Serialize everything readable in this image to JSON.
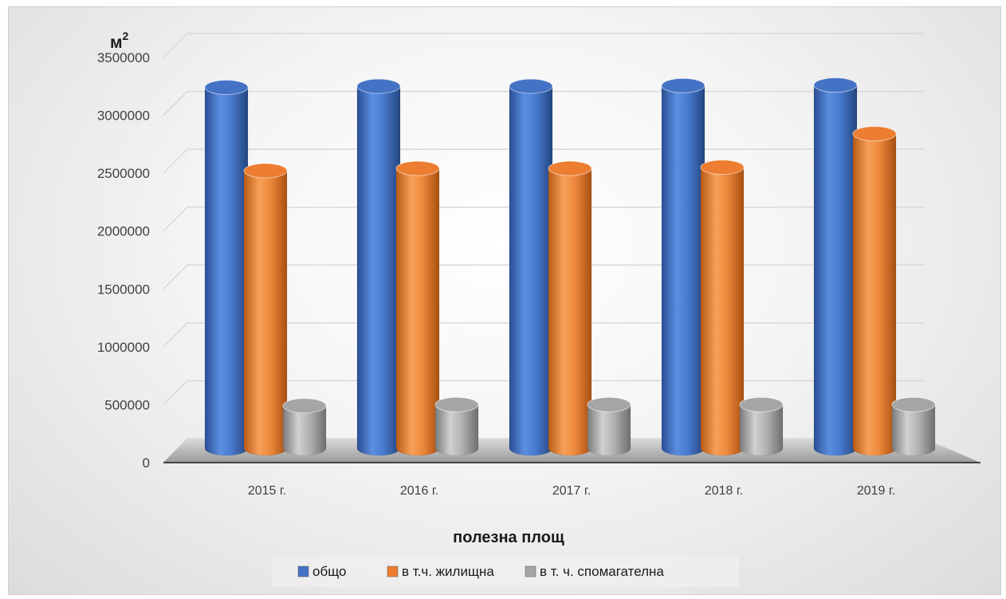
{
  "chart_data": {
    "type": "bar",
    "title": "полезна площ",
    "ylabel": "м",
    "ylabel_superscript": "2",
    "categories": [
      "2015 г.",
      "2016 г.",
      "2017 г.",
      "2018 г.",
      "2019 г."
    ],
    "series": [
      {
        "name": "общо",
        "color": "#4472C4",
        "values": [
          3200000,
          3210000,
          3210000,
          3215000,
          3220000
        ]
      },
      {
        "name": "в т.ч. жилищна",
        "color": "#ED7D31",
        "values": [
          2480000,
          2500000,
          2500000,
          2510000,
          2800000
        ]
      },
      {
        "name": "в т. ч. спомагателна",
        "color": "#A5A5A5",
        "values": [
          450000,
          460000,
          460000,
          460000,
          460000
        ]
      }
    ],
    "ylim": [
      0,
      3500000
    ],
    "yticks": [
      "0",
      "500000",
      "1000000",
      "1500000",
      "2000000",
      "2500000",
      "3000000",
      "3500000"
    ],
    "grid": true,
    "legend_position": "bottom"
  }
}
